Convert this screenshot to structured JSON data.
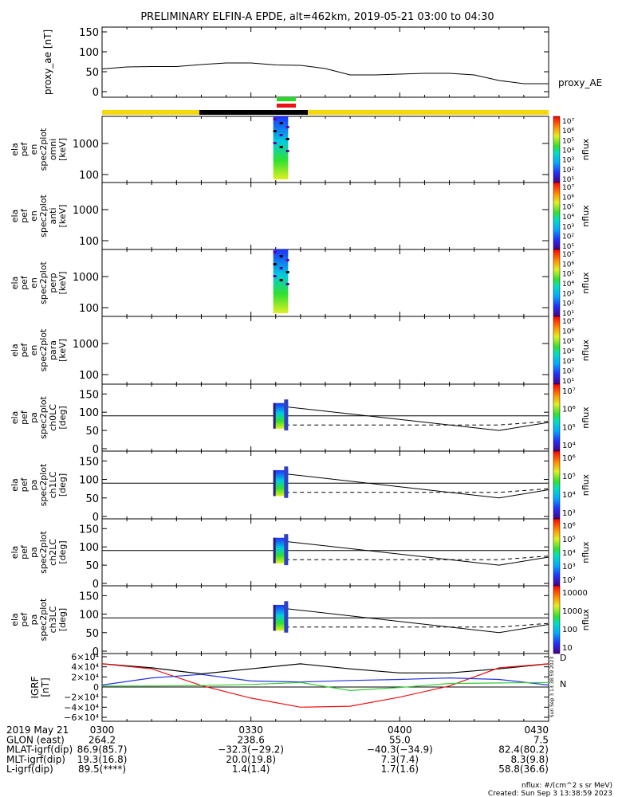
{
  "title": "PRELIMINARY ELFIN-A EPDE, alt=462km, 2019-05-21 03:00 to 04:30",
  "colors": {
    "black": "#000000",
    "yellow": "#f5d70a",
    "green": "#22dd22",
    "red": "#ee1111",
    "blue": "#2233dd",
    "gsm_green": "#33cc33"
  },
  "chart_data": [
    {
      "type": "line",
      "ylabel": "proxy_ae [nT]",
      "yticks": [
        "150",
        "100",
        "50",
        "0"
      ],
      "ylim": [
        0,
        150
      ],
      "series": [
        {
          "name": "proxy_AE",
          "x_minutes": [
            0,
            5,
            10,
            15,
            20,
            25,
            30,
            35,
            40,
            45,
            50,
            55,
            60,
            65,
            70,
            75,
            80,
            85,
            90
          ],
          "values": [
            57,
            62,
            63,
            63,
            68,
            72,
            72,
            67,
            66,
            58,
            42,
            42,
            44,
            46,
            46,
            42,
            28,
            20,
            20
          ]
        }
      ]
    },
    {
      "type": "heatmap",
      "ylabel_lines": [
        "ela",
        "pef",
        "en",
        "spec2plot",
        "omni",
        "[keV]"
      ],
      "yticks": [
        "1000",
        "100"
      ],
      "scale": "log",
      "colorbar": {
        "label": "nflux",
        "ticks": [
          "10⁷",
          "10⁶",
          "10⁵",
          "10⁴",
          "10³",
          "10²",
          "10¹"
        ]
      },
      "burst_minutes": [
        34.5,
        37.5
      ]
    },
    {
      "type": "heatmap",
      "ylabel_lines": [
        "ela",
        "pef",
        "en",
        "spec2plot",
        "anti",
        "[keV]"
      ],
      "yticks": [
        "1000",
        "100"
      ],
      "scale": "log",
      "colorbar": {
        "label": "nflux",
        "ticks": [
          "10⁷",
          "10⁶",
          "10⁵",
          "10⁴",
          "10³",
          "10²",
          "10¹"
        ]
      }
    },
    {
      "type": "heatmap",
      "ylabel_lines": [
        "ela",
        "pef",
        "en",
        "spec2plot",
        "perp",
        "[keV]"
      ],
      "yticks": [
        "1000",
        "100"
      ],
      "scale": "log",
      "colorbar": {
        "label": "nflux",
        "ticks": [
          "10⁷",
          "10⁶",
          "10⁵",
          "10⁴",
          "10³",
          "10²",
          "10¹"
        ]
      },
      "burst_minutes": [
        34.5,
        37.5
      ]
    },
    {
      "type": "heatmap",
      "ylabel_lines": [
        "ela",
        "pef",
        "en",
        "spec2plot",
        "para",
        "[keV]"
      ],
      "yticks": [
        "1000",
        "100"
      ],
      "scale": "log",
      "colorbar": {
        "label": "nflux",
        "ticks": [
          "10⁷",
          "10⁶",
          "10⁵",
          "10⁴",
          "10³",
          "10²",
          "10¹"
        ]
      }
    },
    {
      "type": "heatmap",
      "ylabel_lines": [
        "ela",
        "pef",
        "pa",
        "spec2plot",
        "ch0LC",
        "[deg]"
      ],
      "yticks": [
        "150",
        "100",
        "50",
        "0"
      ],
      "ylim": [
        0,
        180
      ],
      "colorbar": {
        "label": "nflux",
        "ticks": [
          "10⁷",
          "10⁶",
          "10⁵",
          "10⁴"
        ]
      }
    },
    {
      "type": "heatmap",
      "ylabel_lines": [
        "ela",
        "pef",
        "pa",
        "spec2plot",
        "ch1LC",
        "[deg]"
      ],
      "yticks": [
        "150",
        "100",
        "50",
        "0"
      ],
      "ylim": [
        0,
        180
      ],
      "colorbar": {
        "label": "nflux",
        "ticks": [
          "10⁶",
          "10⁵",
          "10⁴",
          "10³"
        ]
      }
    },
    {
      "type": "heatmap",
      "ylabel_lines": [
        "ela",
        "pef",
        "pa",
        "spec2plot",
        "ch2LC",
        "[deg]"
      ],
      "yticks": [
        "150",
        "100",
        "50",
        "0"
      ],
      "ylim": [
        0,
        180
      ],
      "colorbar": {
        "label": "nflux",
        "ticks": [
          "10⁶",
          "10⁵",
          "10⁴",
          "10³",
          "10²"
        ]
      }
    },
    {
      "type": "heatmap",
      "ylabel_lines": [
        "ela",
        "pef",
        "pa",
        "spec2plot",
        "ch3LC",
        "[deg]"
      ],
      "yticks": [
        "150",
        "100",
        "50",
        "0"
      ],
      "ylim": [
        0,
        180
      ],
      "colorbar": {
        "label": "nflux",
        "ticks": [
          "10000",
          "1000",
          "100",
          "10"
        ]
      }
    },
    {
      "type": "line",
      "ylabel_lines": [
        "IGRF",
        "[nT]"
      ],
      "yticks": [
        "6×10⁴",
        "4×10⁴",
        "2×10⁴",
        "0",
        "−2×10⁴",
        "−4×10⁴",
        "−6×10⁴"
      ],
      "ylim": [
        -60000,
        60000
      ],
      "series_side_labels": [
        "D",
        "N"
      ],
      "x_minutes": [
        0,
        10,
        20,
        30,
        40,
        50,
        60,
        70,
        80,
        90
      ],
      "series": [
        {
          "color": "black",
          "values": [
            46000,
            38000,
            26000,
            36000,
            46000,
            36000,
            28000,
            28000,
            36000,
            46000
          ]
        },
        {
          "color": "red",
          "values": [
            46000,
            36000,
            3000,
            -22000,
            -40000,
            -38000,
            -20000,
            2000,
            38000,
            46000
          ]
        },
        {
          "color": "blue",
          "values": [
            4000,
            18000,
            25000,
            12000,
            10000,
            13000,
            15000,
            18000,
            15000,
            4000
          ]
        },
        {
          "color": "gsm_green",
          "values": [
            2000,
            2000,
            3000,
            5000,
            9000,
            -7000,
            -1000,
            7000,
            8000,
            9000
          ]
        }
      ]
    }
  ],
  "side_label": "proxy_AE",
  "watermark_vertical": "Sun Sep  3 13:38:59 2023",
  "footer": {
    "rows": [
      {
        "label": "2019 May 21",
        "values": [
          "0300",
          "0330",
          "0400",
          "0430"
        ]
      },
      {
        "label": "GLON (east)",
        "values": [
          "264.2",
          "238.6",
          "55.0",
          "7.5"
        ]
      },
      {
        "label": "MLAT-igrf(dip)",
        "values": [
          "86.9(85.7)",
          "−32.3(−29.2)",
          "−40.3(−34.9)",
          "82.4(80.2)"
        ]
      },
      {
        "label": "MLT-igrf(dip)",
        "values": [
          "19.3(16.8)",
          "20.0(19.8)",
          "7.3(7.4)",
          "8.3(9.8)"
        ]
      },
      {
        "label": "L-igrf(dip)",
        "values": [
          "89.5(****)",
          "1.4(1.4)",
          "1.7(1.6)",
          "58.8(36.6)"
        ]
      }
    ],
    "units_note": "nflux: #/(cm^2 s sr MeV)",
    "created": "Created: Sun Sep  3 13:38:59 2023"
  }
}
